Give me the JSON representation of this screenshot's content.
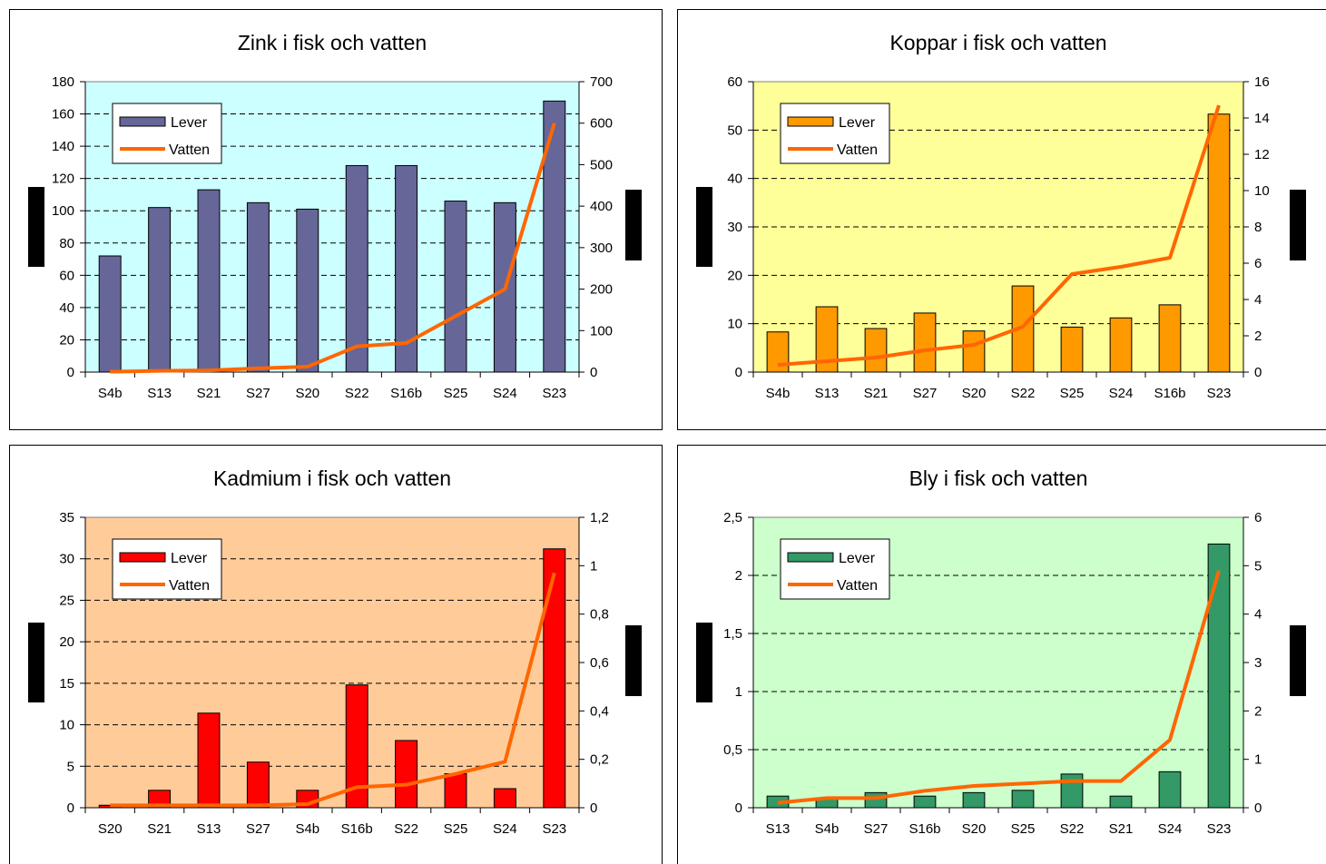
{
  "chart_data": [
    {
      "type": "bar",
      "title": "Zink i fisk och vatten",
      "categories": [
        "S4b",
        "S13",
        "S21",
        "S27",
        "S20",
        "S22",
        "S16b",
        "S25",
        "S24",
        "S23"
      ],
      "ylim": [
        0,
        180
      ],
      "y_ticks": [
        "0",
        "20",
        "40",
        "60",
        "80",
        "100",
        "120",
        "140",
        "160",
        "180"
      ],
      "y2lim": [
        0,
        700
      ],
      "y2_ticks": [
        "0",
        "100",
        "200",
        "300",
        "400",
        "500",
        "600",
        "700"
      ],
      "series": [
        {
          "name": "Lever",
          "type": "bar",
          "axis": "left",
          "values": [
            72,
            102,
            113,
            105,
            101,
            128,
            128,
            106,
            105,
            168
          ]
        },
        {
          "name": "Vatten",
          "type": "line",
          "axis": "right",
          "values": [
            1,
            3,
            4,
            9,
            13,
            62,
            70,
            135,
            200,
            600
          ]
        }
      ],
      "colors": {
        "bar": "#666699",
        "line": "#ff6600",
        "plot_bg": "#ccffff"
      },
      "legend": "top-left",
      "grid": true
    },
    {
      "type": "bar",
      "title": "Koppar i fisk och vatten",
      "categories": [
        "S4b",
        "S13",
        "S21",
        "S27",
        "S20",
        "S22",
        "S25",
        "S24",
        "S16b",
        "S23"
      ],
      "ylim": [
        0,
        60
      ],
      "y_ticks": [
        "0",
        "10",
        "20",
        "30",
        "40",
        "50",
        "60"
      ],
      "y2lim": [
        0,
        16
      ],
      "y2_ticks": [
        "0",
        "2",
        "4",
        "6",
        "8",
        "10",
        "12",
        "14",
        "16"
      ],
      "series": [
        {
          "name": "Lever",
          "type": "bar",
          "axis": "left",
          "values": [
            8.3,
            13.5,
            9,
            12.2,
            8.5,
            17.8,
            9.3,
            11.2,
            13.9,
            53.3
          ]
        },
        {
          "name": "Vatten",
          "type": "line",
          "axis": "right",
          "values": [
            0.4,
            0.6,
            0.8,
            1.2,
            1.5,
            2.5,
            5.4,
            5.8,
            6.3,
            14.7
          ]
        }
      ],
      "colors": {
        "bar": "#ff9900",
        "line": "#ff6600",
        "plot_bg": "#ffff99"
      },
      "legend": "top-left",
      "grid": true
    },
    {
      "type": "bar",
      "title": "Kadmium i fisk och vatten",
      "categories": [
        "S20",
        "S21",
        "S13",
        "S27",
        "S4b",
        "S16b",
        "S22",
        "S25",
        "S24",
        "S23"
      ],
      "ylim": [
        0,
        35
      ],
      "y_ticks": [
        "0",
        "5",
        "10",
        "15",
        "20",
        "25",
        "30",
        "35"
      ],
      "y2lim": [
        0,
        1.2
      ],
      "y2_ticks": [
        "0",
        "0,2",
        "0,4",
        "0,6",
        "0,8",
        "1",
        "1,2"
      ],
      "series": [
        {
          "name": "Lever",
          "type": "bar",
          "axis": "left",
          "values": [
            0.3,
            2.1,
            11.4,
            5.5,
            2.1,
            14.8,
            8.1,
            4.1,
            2.3,
            31.2
          ]
        },
        {
          "name": "Vatten",
          "type": "line",
          "axis": "right",
          "values": [
            0.01,
            0.01,
            0.01,
            0.01,
            0.015,
            0.085,
            0.095,
            0.14,
            0.19,
            0.97
          ]
        }
      ],
      "colors": {
        "bar": "#ff0000",
        "line": "#ff6600",
        "plot_bg": "#ffcc99"
      },
      "legend": "top-left",
      "grid": true
    },
    {
      "type": "bar",
      "title": "Bly i fisk och vatten",
      "categories": [
        "S13",
        "S4b",
        "S27",
        "S16b",
        "S20",
        "S25",
        "S22",
        "S21",
        "S24",
        "S23"
      ],
      "ylim": [
        0,
        2.5
      ],
      "y_ticks": [
        "0",
        "0,5",
        "1",
        "1,5",
        "2",
        "2,5"
      ],
      "y2lim": [
        0,
        6
      ],
      "y2_ticks": [
        "0",
        "1",
        "2",
        "3",
        "4",
        "5",
        "6"
      ],
      "series": [
        {
          "name": "Lever",
          "type": "bar",
          "axis": "left",
          "values": [
            0.1,
            0.08,
            0.13,
            0.1,
            0.13,
            0.15,
            0.29,
            0.1,
            0.31,
            2.27
          ]
        },
        {
          "name": "Vatten",
          "type": "line",
          "axis": "right",
          "values": [
            0.1,
            0.2,
            0.2,
            0.35,
            0.45,
            0.5,
            0.55,
            0.55,
            1.4,
            4.9
          ]
        }
      ],
      "colors": {
        "bar": "#339966",
        "line": "#ff6600",
        "plot_bg": "#ccffcc"
      },
      "legend": "top-left",
      "grid": true
    }
  ]
}
